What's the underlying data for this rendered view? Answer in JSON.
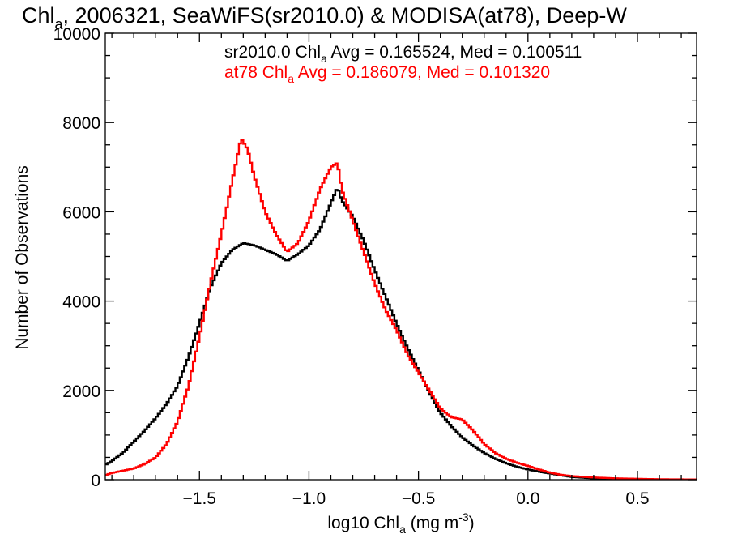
{
  "chart_data": {
    "type": "line",
    "title": {
      "pre": "Chl",
      "sub": "a",
      "post": ", 2006321, SeaWiFS(sr2010.0) & MODISA(at78), Deep-W"
    },
    "xlabel": {
      "pre": "log10 Chl",
      "sub": "a",
      "mid": " (mg m",
      "sup": "-3",
      "post": ")"
    },
    "ylabel": "Number of Observations",
    "xlim": [
      -1.93,
      0.77
    ],
    "ylim": [
      0,
      10000
    ],
    "xticks": [
      -1.5,
      -1.0,
      -0.5,
      0.0,
      0.5
    ],
    "xtick_labels": [
      "−1.5",
      "−1.0",
      "−0.5",
      "0.0",
      "0.5"
    ],
    "yticks": [
      0,
      2000,
      4000,
      6000,
      8000,
      10000
    ],
    "ytick_labels": [
      "0",
      "2000",
      "4000",
      "6000",
      "8000",
      "10000"
    ],
    "x_minor_step": 0.1,
    "y_minor_step": 500,
    "grid": false,
    "legend_placement": "top",
    "annotations": [
      {
        "series": "sr2010.0",
        "pre": "sr2010.0 Chl",
        "sub": "a",
        "post": " Avg = 0.165524, Med = 0.100511",
        "color": "#000000"
      },
      {
        "series": "at78",
        "pre": "at78 Chl",
        "sub": "a",
        "post": " Avg = 0.186079, Med = 0.101320",
        "color": "#ff0000"
      }
    ],
    "series": [
      {
        "name": "sr2010.0",
        "color": "#000000",
        "points": [
          [
            -1.93,
            330
          ],
          [
            -1.9,
            420
          ],
          [
            -1.85,
            600
          ],
          [
            -1.8,
            850
          ],
          [
            -1.75,
            1100
          ],
          [
            -1.7,
            1380
          ],
          [
            -1.65,
            1700
          ],
          [
            -1.6,
            2100
          ],
          [
            -1.55,
            2750
          ],
          [
            -1.5,
            3500
          ],
          [
            -1.45,
            4300
          ],
          [
            -1.4,
            4850
          ],
          [
            -1.35,
            5150
          ],
          [
            -1.3,
            5300
          ],
          [
            -1.25,
            5250
          ],
          [
            -1.2,
            5150
          ],
          [
            -1.15,
            5050
          ],
          [
            -1.1,
            4900
          ],
          [
            -1.05,
            5050
          ],
          [
            -1.0,
            5250
          ],
          [
            -0.95,
            5600
          ],
          [
            -0.9,
            6200
          ],
          [
            -0.87,
            6550
          ],
          [
            -0.85,
            6250
          ],
          [
            -0.8,
            5900
          ],
          [
            -0.75,
            5350
          ],
          [
            -0.7,
            4700
          ],
          [
            -0.65,
            4100
          ],
          [
            -0.6,
            3500
          ],
          [
            -0.55,
            2950
          ],
          [
            -0.5,
            2450
          ],
          [
            -0.45,
            1950
          ],
          [
            -0.4,
            1500
          ],
          [
            -0.35,
            1200
          ],
          [
            -0.3,
            950
          ],
          [
            -0.25,
            760
          ],
          [
            -0.2,
            600
          ],
          [
            -0.15,
            470
          ],
          [
            -0.1,
            370
          ],
          [
            -0.05,
            290
          ],
          [
            0.0,
            230
          ],
          [
            0.05,
            180
          ],
          [
            0.1,
            140
          ],
          [
            0.15,
            100
          ],
          [
            0.2,
            60
          ],
          [
            0.3,
            30
          ],
          [
            0.4,
            15
          ],
          [
            0.5,
            10
          ],
          [
            0.6,
            5
          ],
          [
            0.77,
            3
          ]
        ]
      },
      {
        "name": "at78",
        "color": "#ff0000",
        "points": [
          [
            -1.93,
            100
          ],
          [
            -1.9,
            150
          ],
          [
            -1.85,
            200
          ],
          [
            -1.8,
            250
          ],
          [
            -1.75,
            350
          ],
          [
            -1.7,
            500
          ],
          [
            -1.65,
            800
          ],
          [
            -1.6,
            1300
          ],
          [
            -1.55,
            2100
          ],
          [
            -1.5,
            3200
          ],
          [
            -1.45,
            4400
          ],
          [
            -1.4,
            5500
          ],
          [
            -1.35,
            6700
          ],
          [
            -1.31,
            7650
          ],
          [
            -1.28,
            7400
          ],
          [
            -1.25,
            6800
          ],
          [
            -1.2,
            6000
          ],
          [
            -1.15,
            5500
          ],
          [
            -1.1,
            5100
          ],
          [
            -1.05,
            5300
          ],
          [
            -1.0,
            5800
          ],
          [
            -0.95,
            6500
          ],
          [
            -0.9,
            7000
          ],
          [
            -0.87,
            7100
          ],
          [
            -0.85,
            6500
          ],
          [
            -0.8,
            5800
          ],
          [
            -0.75,
            5100
          ],
          [
            -0.7,
            4400
          ],
          [
            -0.65,
            3800
          ],
          [
            -0.6,
            3350
          ],
          [
            -0.55,
            2800
          ],
          [
            -0.5,
            2400
          ],
          [
            -0.45,
            2000
          ],
          [
            -0.4,
            1600
          ],
          [
            -0.35,
            1400
          ],
          [
            -0.3,
            1350
          ],
          [
            -0.25,
            1100
          ],
          [
            -0.2,
            800
          ],
          [
            -0.15,
            600
          ],
          [
            -0.1,
            470
          ],
          [
            -0.05,
            380
          ],
          [
            0.0,
            310
          ],
          [
            0.05,
            230
          ],
          [
            0.1,
            160
          ],
          [
            0.15,
            110
          ],
          [
            0.2,
            80
          ],
          [
            0.3,
            50
          ],
          [
            0.4,
            30
          ],
          [
            0.5,
            20
          ],
          [
            0.6,
            10
          ],
          [
            0.77,
            5
          ]
        ]
      }
    ]
  }
}
